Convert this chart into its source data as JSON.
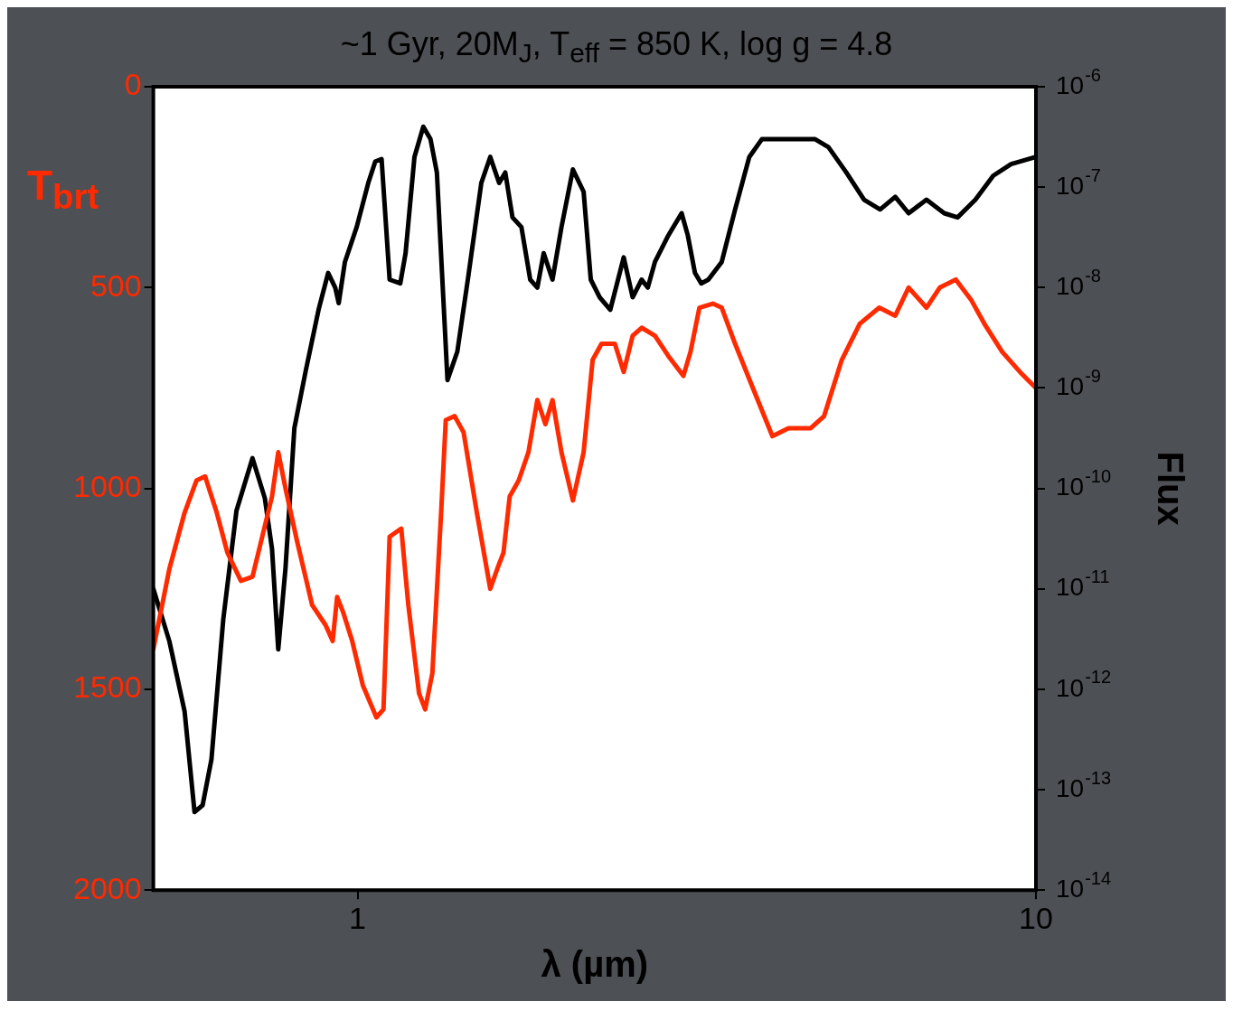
{
  "chart_data": {
    "type": "line",
    "title": "~1 Gyr, 20M$_{J}$, T$_{eff}$ = 850 K, log g = 4.8",
    "xlabel": "λ (µm)",
    "ylabel": "Flux",
    "y2label": "T$_{brt}$",
    "log": "xy",
    "legend": false,
    "marker": "none",
    "line_style": "solid",
    "xlim": [
      0.5,
      10
    ],
    "xticks": [
      1,
      10
    ],
    "ylim": [
      1e-14,
      1e-06
    ],
    "yticks": [
      {
        "value": 1e-14,
        "label": "10$^{-14}$"
      },
      {
        "value": 1e-13,
        "label": "10$^{-13}$"
      },
      {
        "value": 1e-12,
        "label": "10$^{-12}$"
      },
      {
        "value": 1e-11,
        "label": "10$^{-11}$"
      },
      {
        "value": 1e-10,
        "label": "10$^{-10}$"
      },
      {
        "value": 1e-09,
        "label": "10$^{-9}$"
      },
      {
        "value": 1e-08,
        "label": "10$^{-8}$"
      },
      {
        "value": 1e-07,
        "label": "10$^{-7}$"
      },
      {
        "value": 1e-06,
        "label": "10$^{-6}$"
      }
    ],
    "y2lim": [
      2000,
      0
    ],
    "y2ticks": [
      0,
      500,
      1000,
      1500,
      2000
    ],
    "series": [
      {
        "color": "#ff2a00",
        "axis": "y2",
        "x": [
          0.5,
          0.528,
          0.556,
          0.579,
          0.596,
          0.62,
          0.643,
          0.673,
          0.7,
          0.726,
          0.748,
          0.764,
          0.783,
          0.814,
          0.857,
          0.897,
          0.919,
          0.933,
          0.953,
          0.982,
          1.018,
          1.066,
          1.092,
          1.115,
          1.16,
          1.188,
          1.232,
          1.258,
          1.289,
          1.328,
          1.349,
          1.39,
          1.433,
          1.499,
          1.569,
          1.607,
          1.641,
          1.676,
          1.728,
          1.786,
          1.841,
          1.892,
          1.938,
          1.998,
          2.077,
          2.154,
          2.221,
          2.289,
          2.395,
          2.468,
          2.544,
          2.623,
          2.744,
          2.871,
          3.022,
          3.096,
          3.191,
          3.339,
          3.442,
          3.602,
          3.826,
          4.088,
          4.317,
          4.656,
          4.872,
          5.174,
          5.499,
          5.875,
          6.203,
          6.491,
          6.896,
          7.215,
          7.618,
          8.022,
          8.394,
          8.916,
          9.471,
          10
        ],
        "values": [
          1400,
          1200,
          1060,
          980,
          970,
          1060,
          1160,
          1230,
          1220,
          1110,
          1020,
          910,
          1000,
          1130,
          1290,
          1340,
          1380,
          1270,
          1310,
          1380,
          1490,
          1570,
          1550,
          1120,
          1100,
          1290,
          1510,
          1550,
          1460,
          1060,
          830,
          820,
          860,
          1060,
          1250,
          1200,
          1160,
          1020,
          980,
          910,
          780,
          840,
          780,
          910,
          1030,
          910,
          680,
          640,
          640,
          710,
          620,
          600,
          620,
          670,
          720,
          660,
          550,
          540,
          550,
          640,
          750,
          870,
          850,
          850,
          820,
          680,
          590,
          550,
          570,
          500,
          550,
          500,
          480,
          530,
          590,
          660,
          710,
          750
        ]
      },
      {
        "color": "#000000",
        "axis": "y",
        "x": [
          0.5,
          0.528,
          0.556,
          0.575,
          0.591,
          0.609,
          0.634,
          0.663,
          0.7,
          0.73,
          0.748,
          0.764,
          0.783,
          0.807,
          0.839,
          0.876,
          0.905,
          0.927,
          0.938,
          0.958,
          0.997,
          1.037,
          1.062,
          1.085,
          1.115,
          1.156,
          1.177,
          1.213,
          1.25,
          1.281,
          1.309,
          1.332,
          1.357,
          1.403,
          1.454,
          1.522,
          1.569,
          1.617,
          1.651,
          1.692,
          1.744,
          1.797,
          1.841,
          1.881,
          1.938,
          1.998,
          2.077,
          2.154,
          2.207,
          2.275,
          2.358,
          2.468,
          2.544,
          2.623,
          2.678,
          2.744,
          2.871,
          3.004,
          3.068,
          3.143,
          3.211,
          3.289,
          3.442,
          3.602,
          3.78,
          3.944,
          4.188,
          4.449,
          4.727,
          4.945,
          5.254,
          5.581,
          5.893,
          6.203,
          6.491,
          6.896,
          7.325,
          7.664,
          8.143,
          8.65,
          9.191,
          10
        ],
        "values": [
          1e-11,
          3e-12,
          6e-13,
          6e-14,
          7e-14,
          2e-13,
          5e-12,
          6e-11,
          2e-10,
          8e-11,
          2.5e-11,
          2.5e-12,
          1.6e-11,
          4e-10,
          1.5e-09,
          6e-09,
          1.4e-08,
          1e-08,
          7e-09,
          1.8e-08,
          4e-08,
          1.1e-07,
          1.8e-07,
          1.9e-07,
          1.2e-08,
          1.1e-08,
          2.2e-08,
          2e-07,
          4e-07,
          3e-07,
          1.4e-07,
          1.4e-08,
          1.2e-09,
          2.3e-09,
          1.2e-08,
          1.1e-07,
          2e-07,
          1.1e-07,
          1.4e-07,
          5e-08,
          4e-08,
          1.2e-08,
          1e-08,
          2.2e-08,
          1.2e-08,
          4e-08,
          1.5e-07,
          9e-08,
          1.2e-08,
          8e-09,
          6e-09,
          2e-08,
          8e-09,
          1.2e-08,
          1e-08,
          1.8e-08,
          3.3e-08,
          5.5e-08,
          3.3e-08,
          1.4e-08,
          1.1e-08,
          1.2e-08,
          1.8e-08,
          6e-08,
          2e-07,
          3e-07,
          3e-07,
          3e-07,
          3e-07,
          2.5e-07,
          1.4e-07,
          7.5e-08,
          6e-08,
          8e-08,
          5.5e-08,
          7.5e-08,
          5.5e-08,
          5e-08,
          7.5e-08,
          1.3e-07,
          1.7e-07,
          2e-07
        ]
      }
    ]
  }
}
